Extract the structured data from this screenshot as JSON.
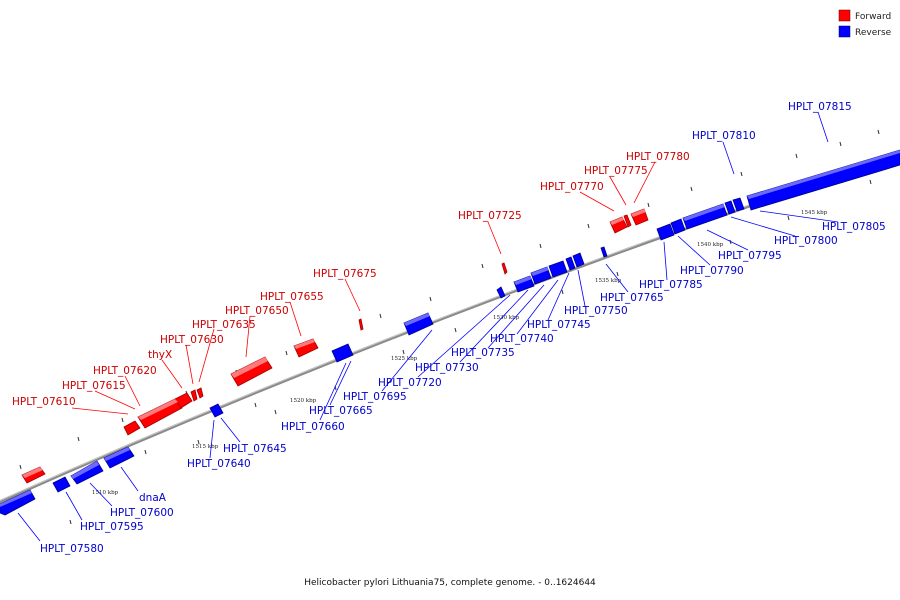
{
  "caption": "Helicobacter pylori Lithuania75, complete genome. - 0..1624644",
  "legend": [
    {
      "label": "Forward",
      "color": "#ff0000"
    },
    {
      "label": "Reverse",
      "color": "#0000ff"
    }
  ],
  "colors": {
    "forward": "#ff0000",
    "forward_dark": "#b00000",
    "reverse": "#0000ff",
    "reverse_dark": "#0000a0",
    "backbone": "#888888"
  },
  "ticks": [
    "1510 kbp",
    "1515 kbp",
    "1520 kbp",
    "1525 kbp",
    "1530 kbp",
    "1535 kbp",
    "1540 kbp",
    "1545 kbp"
  ],
  "forward_labels": [
    "HPLT_07610",
    "HPLT_07615",
    "HPLT_07620",
    "thyX",
    "HPLT_07630",
    "HPLT_07635",
    "HPLT_07650",
    "HPLT_07655",
    "HPLT_07675",
    "HPLT_07725",
    "HPLT_07770",
    "HPLT_07775",
    "HPLT_07780"
  ],
  "reverse_labels": [
    "HPLT_07580",
    "HPLT_07595",
    "HPLT_07600",
    "dnaA",
    "HPLT_07640",
    "HPLT_07645",
    "HPLT_07660",
    "HPLT_07665",
    "HPLT_07695",
    "HPLT_07720",
    "HPLT_07730",
    "HPLT_07735",
    "HPLT_07740",
    "HPLT_07745",
    "HPLT_07750",
    "HPLT_07765",
    "HPLT_07785",
    "HPLT_07790",
    "HPLT_07795",
    "HPLT_07800",
    "HPLT_07805",
    "HPLT_07810",
    "HPLT_07815"
  ]
}
